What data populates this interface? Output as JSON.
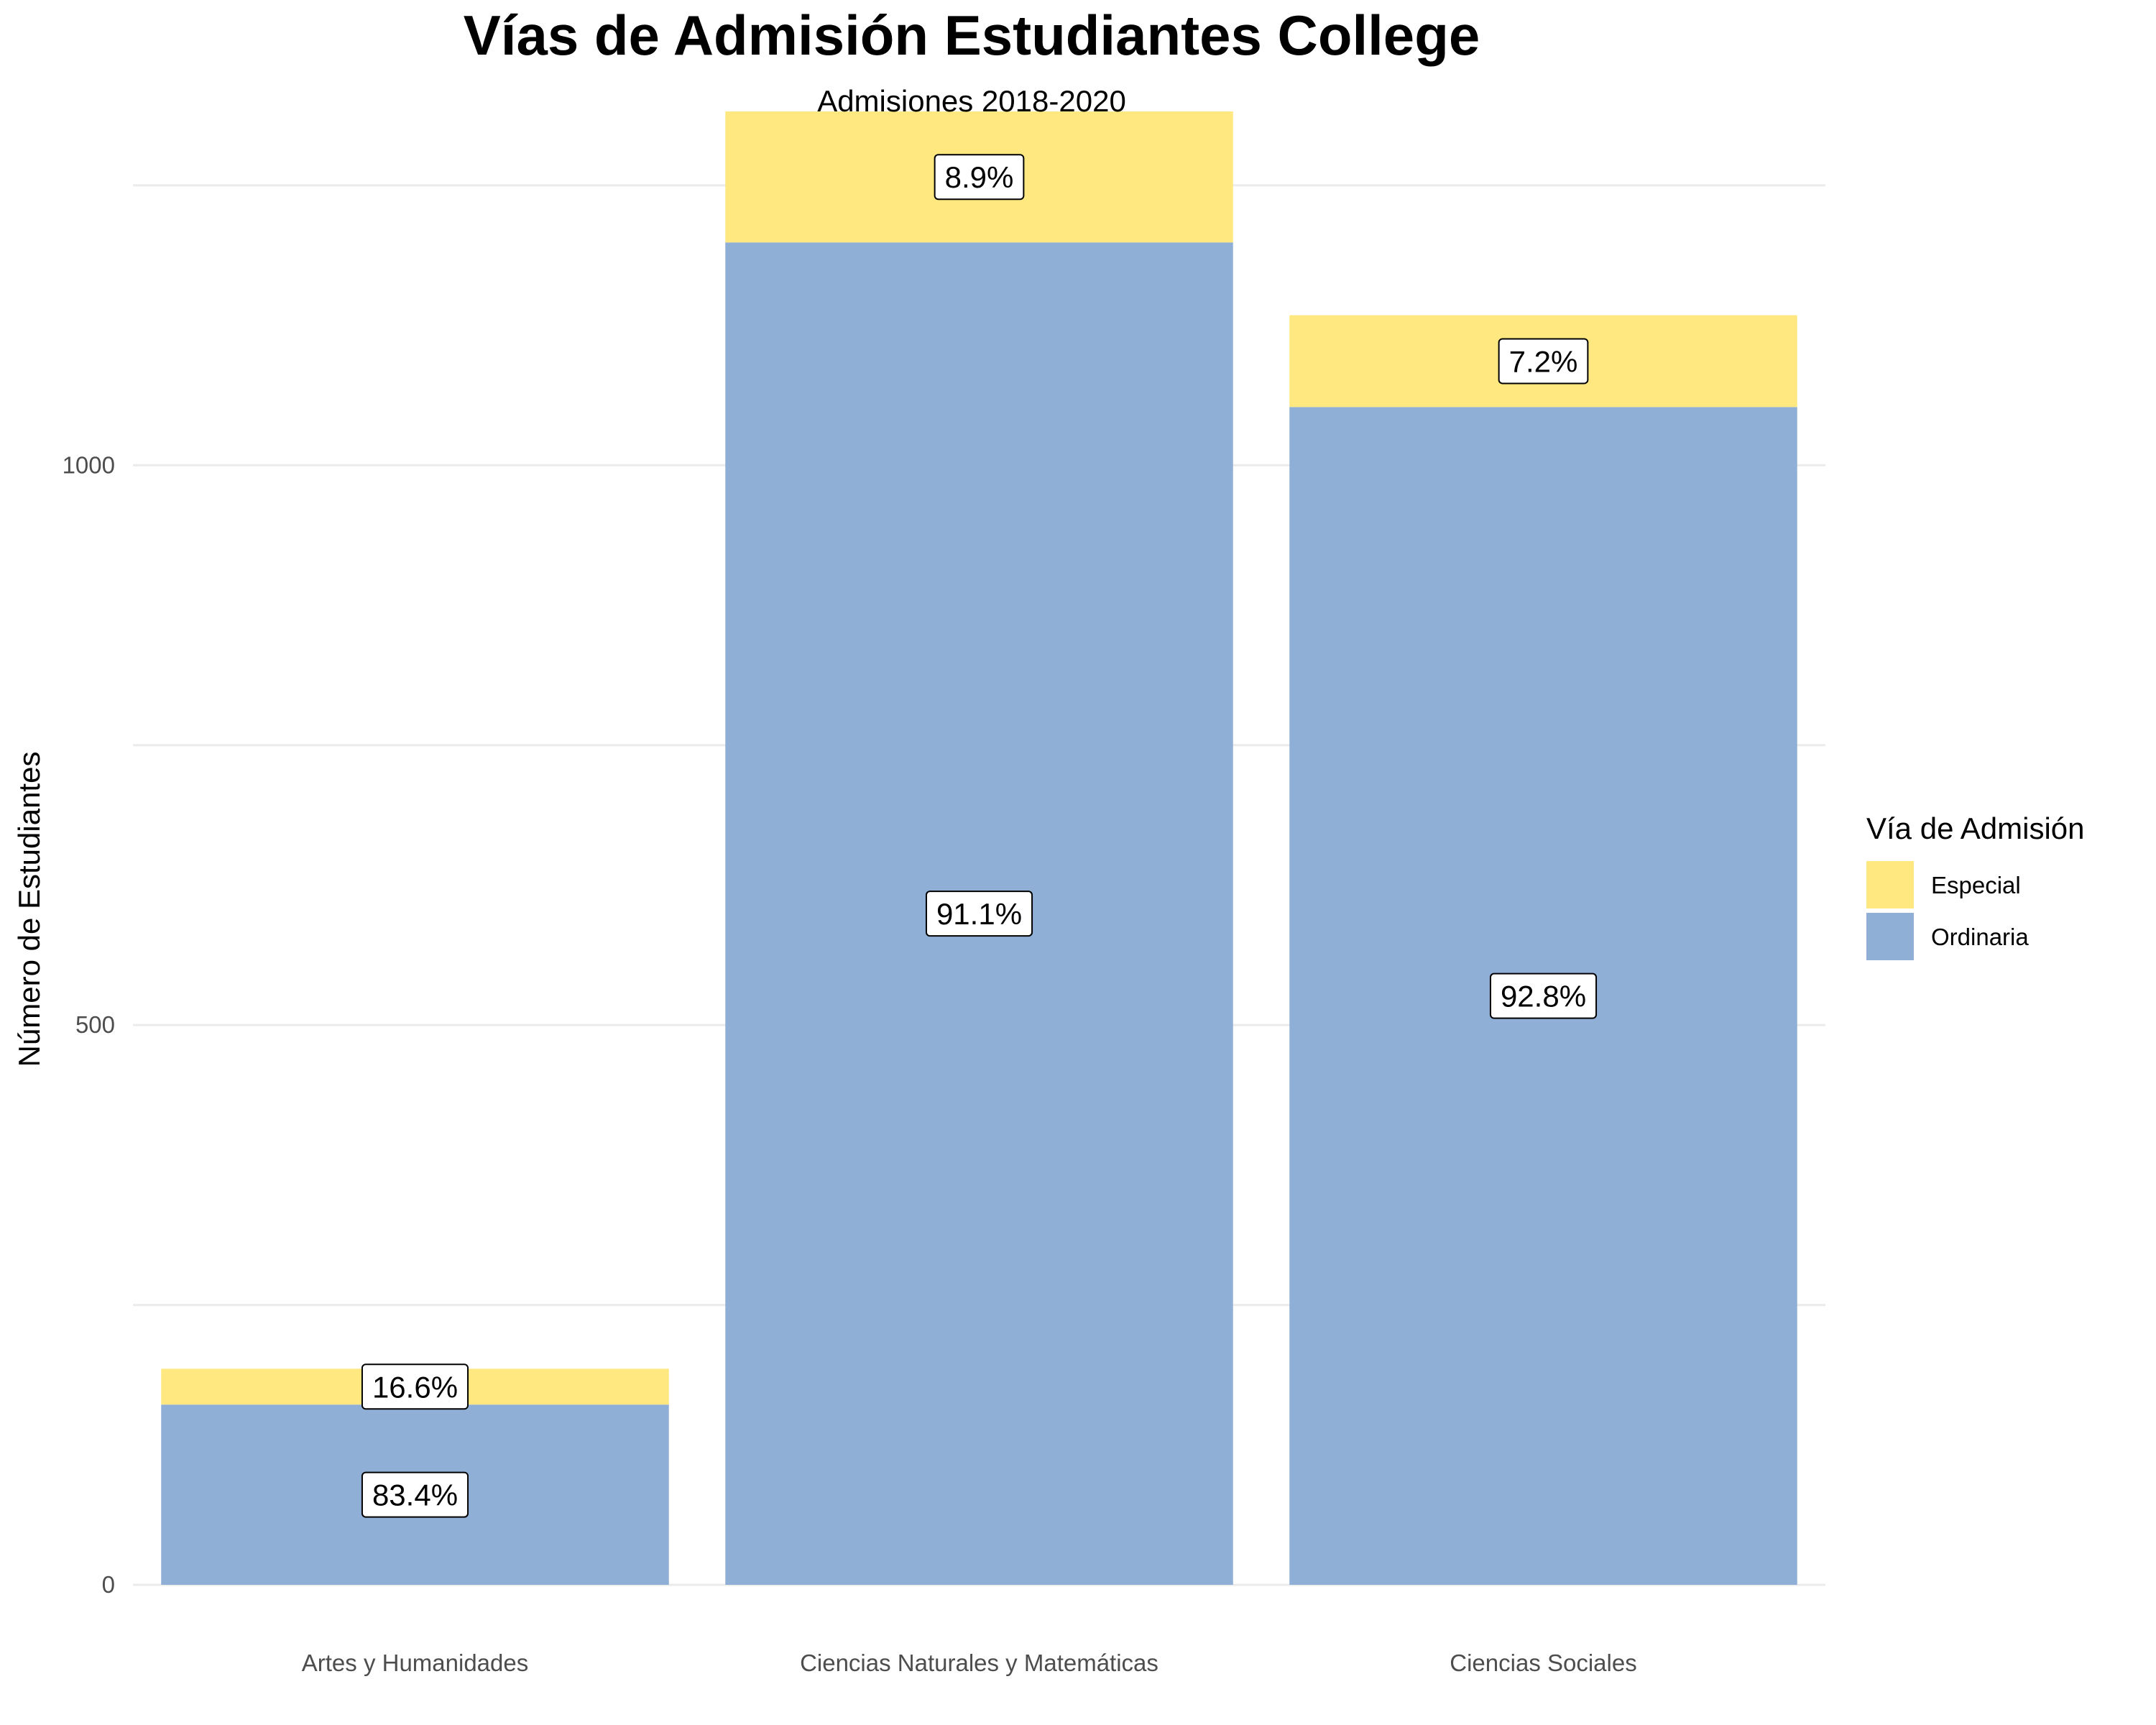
{
  "chart_data": {
    "type": "bar",
    "stacked": true,
    "title": "Vías de Admisión Estudiantes College",
    "subtitle": "Admisiones 2018-2020",
    "xlabel": "",
    "ylabel": "Número de Estudiantes",
    "ylim": [
      0,
      1300
    ],
    "yticks": [
      0,
      500,
      1000
    ],
    "grid": true,
    "categories": [
      "Artes y Humanidades",
      "Ciencias Naturales y Matemáticas",
      "Ciencias Sociales"
    ],
    "series": [
      {
        "name": "Ordinaria",
        "color": "#8fafd6",
        "values": [
          161,
          1199,
          1052
        ],
        "labels": [
          "83.4%",
          "91.1%",
          "92.8%"
        ]
      },
      {
        "name": "Especial",
        "color": "#ffe880",
        "values": [
          32,
          117,
          82
        ],
        "labels": [
          "16.6%",
          "8.9%",
          "7.2%"
        ]
      }
    ],
    "legend": {
      "title": "Vía de Admisión",
      "position": "right",
      "entries": [
        "Especial",
        "Ordinaria"
      ]
    }
  }
}
